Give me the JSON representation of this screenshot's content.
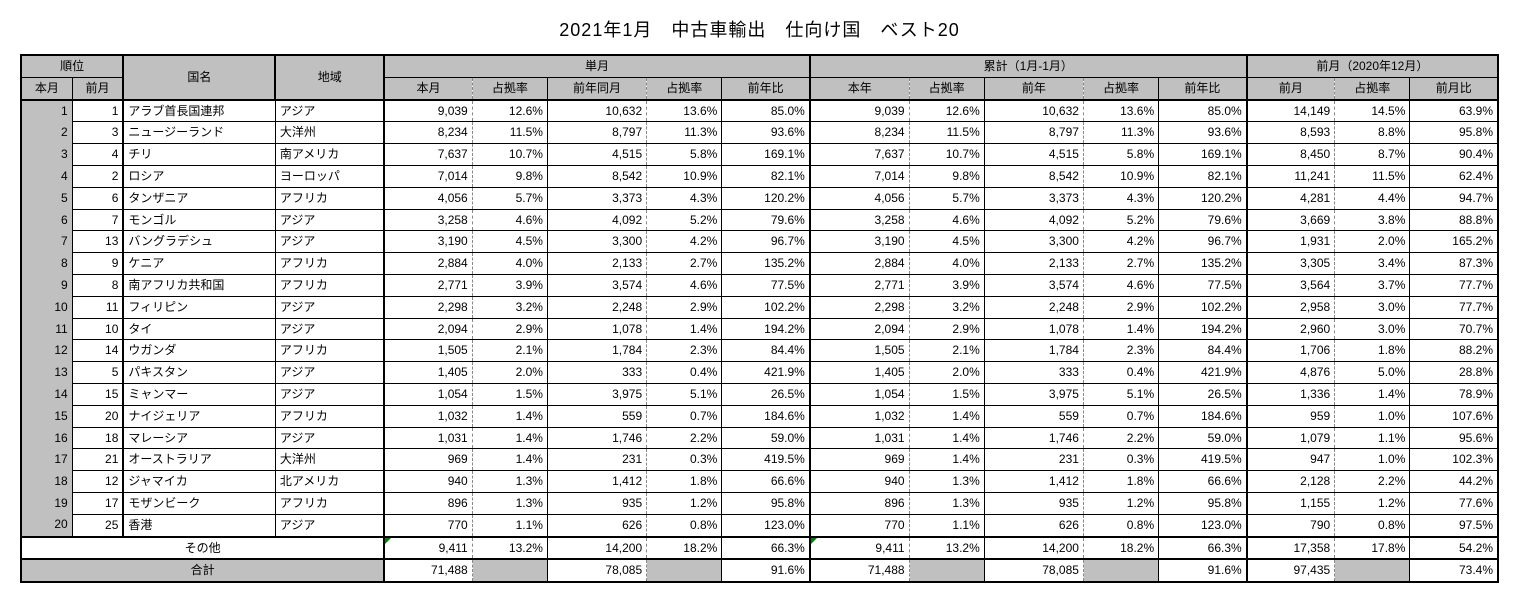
{
  "title": "2021年1月　中古車輸出　仕向け国　ベスト20",
  "header": {
    "rank": "順位",
    "rank_this": "本月",
    "rank_prev": "前月",
    "country": "国名",
    "region": "地域",
    "single_month": "単月",
    "cumulative": "累計（1月-1月）",
    "prev_month": "前月（2020年12月）",
    "sub": {
      "this_month": "本月",
      "share": "占拠率",
      "last_year_month": "前年同月",
      "yoy": "前年比",
      "this_year": "本年",
      "last_year": "前年",
      "prev_m": "前月",
      "mom": "前月比"
    }
  },
  "rows": [
    {
      "r": 1,
      "pr": 1,
      "country": "アラブ首長国連邦",
      "region": "アジア",
      "m": "9,039",
      "ms": "12.6%",
      "ly": "10,632",
      "lys": "13.6%",
      "yoy": "85.0%",
      "cy": "9,039",
      "cys": "12.6%",
      "cly": "10,632",
      "clys": "13.6%",
      "cyy": "85.0%",
      "pm": "14,149",
      "pms": "14.5%",
      "mom": "63.9%"
    },
    {
      "r": 2,
      "pr": 3,
      "country": "ニュージーランド",
      "region": "大洋州",
      "m": "8,234",
      "ms": "11.5%",
      "ly": "8,797",
      "lys": "11.3%",
      "yoy": "93.6%",
      "cy": "8,234",
      "cys": "11.5%",
      "cly": "8,797",
      "clys": "11.3%",
      "cyy": "93.6%",
      "pm": "8,593",
      "pms": "8.8%",
      "mom": "95.8%"
    },
    {
      "r": 3,
      "pr": 4,
      "country": "チリ",
      "region": "南アメリカ",
      "m": "7,637",
      "ms": "10.7%",
      "ly": "4,515",
      "lys": "5.8%",
      "yoy": "169.1%",
      "cy": "7,637",
      "cys": "10.7%",
      "cly": "4,515",
      "clys": "5.8%",
      "cyy": "169.1%",
      "pm": "8,450",
      "pms": "8.7%",
      "mom": "90.4%"
    },
    {
      "r": 4,
      "pr": 2,
      "country": "ロシア",
      "region": "ヨーロッパ",
      "m": "7,014",
      "ms": "9.8%",
      "ly": "8,542",
      "lys": "10.9%",
      "yoy": "82.1%",
      "cy": "7,014",
      "cys": "9.8%",
      "cly": "8,542",
      "clys": "10.9%",
      "cyy": "82.1%",
      "pm": "11,241",
      "pms": "11.5%",
      "mom": "62.4%"
    },
    {
      "r": 5,
      "pr": 6,
      "country": "タンザニア",
      "region": "アフリカ",
      "m": "4,056",
      "ms": "5.7%",
      "ly": "3,373",
      "lys": "4.3%",
      "yoy": "120.2%",
      "cy": "4,056",
      "cys": "5.7%",
      "cly": "3,373",
      "clys": "4.3%",
      "cyy": "120.2%",
      "pm": "4,281",
      "pms": "4.4%",
      "mom": "94.7%"
    },
    {
      "r": 6,
      "pr": 7,
      "country": "モンゴル",
      "region": "アジア",
      "m": "3,258",
      "ms": "4.6%",
      "ly": "4,092",
      "lys": "5.2%",
      "yoy": "79.6%",
      "cy": "3,258",
      "cys": "4.6%",
      "cly": "4,092",
      "clys": "5.2%",
      "cyy": "79.6%",
      "pm": "3,669",
      "pms": "3.8%",
      "mom": "88.8%"
    },
    {
      "r": 7,
      "pr": 13,
      "country": "バングラデシュ",
      "region": "アジア",
      "m": "3,190",
      "ms": "4.5%",
      "ly": "3,300",
      "lys": "4.2%",
      "yoy": "96.7%",
      "cy": "3,190",
      "cys": "4.5%",
      "cly": "3,300",
      "clys": "4.2%",
      "cyy": "96.7%",
      "pm": "1,931",
      "pms": "2.0%",
      "mom": "165.2%"
    },
    {
      "r": 8,
      "pr": 9,
      "country": "ケニア",
      "region": "アフリカ",
      "m": "2,884",
      "ms": "4.0%",
      "ly": "2,133",
      "lys": "2.7%",
      "yoy": "135.2%",
      "cy": "2,884",
      "cys": "4.0%",
      "cly": "2,133",
      "clys": "2.7%",
      "cyy": "135.2%",
      "pm": "3,305",
      "pms": "3.4%",
      "mom": "87.3%"
    },
    {
      "r": 9,
      "pr": 8,
      "country": "南アフリカ共和国",
      "region": "アフリカ",
      "m": "2,771",
      "ms": "3.9%",
      "ly": "3,574",
      "lys": "4.6%",
      "yoy": "77.5%",
      "cy": "2,771",
      "cys": "3.9%",
      "cly": "3,574",
      "clys": "4.6%",
      "cyy": "77.5%",
      "pm": "3,564",
      "pms": "3.7%",
      "mom": "77.7%"
    },
    {
      "r": 10,
      "pr": 11,
      "country": "フィリピン",
      "region": "アジア",
      "m": "2,298",
      "ms": "3.2%",
      "ly": "2,248",
      "lys": "2.9%",
      "yoy": "102.2%",
      "cy": "2,298",
      "cys": "3.2%",
      "cly": "2,248",
      "clys": "2.9%",
      "cyy": "102.2%",
      "pm": "2,958",
      "pms": "3.0%",
      "mom": "77.7%"
    },
    {
      "r": 11,
      "pr": 10,
      "country": "タイ",
      "region": "アジア",
      "m": "2,094",
      "ms": "2.9%",
      "ly": "1,078",
      "lys": "1.4%",
      "yoy": "194.2%",
      "cy": "2,094",
      "cys": "2.9%",
      "cly": "1,078",
      "clys": "1.4%",
      "cyy": "194.2%",
      "pm": "2,960",
      "pms": "3.0%",
      "mom": "70.7%"
    },
    {
      "r": 12,
      "pr": 14,
      "country": "ウガンダ",
      "region": "アフリカ",
      "m": "1,505",
      "ms": "2.1%",
      "ly": "1,784",
      "lys": "2.3%",
      "yoy": "84.4%",
      "cy": "1,505",
      "cys": "2.1%",
      "cly": "1,784",
      "clys": "2.3%",
      "cyy": "84.4%",
      "pm": "1,706",
      "pms": "1.8%",
      "mom": "88.2%"
    },
    {
      "r": 13,
      "pr": 5,
      "country": "パキスタン",
      "region": "アジア",
      "m": "1,405",
      "ms": "2.0%",
      "ly": "333",
      "lys": "0.4%",
      "yoy": "421.9%",
      "cy": "1,405",
      "cys": "2.0%",
      "cly": "333",
      "clys": "0.4%",
      "cyy": "421.9%",
      "pm": "4,876",
      "pms": "5.0%",
      "mom": "28.8%"
    },
    {
      "r": 14,
      "pr": 15,
      "country": "ミャンマー",
      "region": "アジア",
      "m": "1,054",
      "ms": "1.5%",
      "ly": "3,975",
      "lys": "5.1%",
      "yoy": "26.5%",
      "cy": "1,054",
      "cys": "1.5%",
      "cly": "3,975",
      "clys": "5.1%",
      "cyy": "26.5%",
      "pm": "1,336",
      "pms": "1.4%",
      "mom": "78.9%"
    },
    {
      "r": 15,
      "pr": 20,
      "country": "ナイジェリア",
      "region": "アフリカ",
      "m": "1,032",
      "ms": "1.4%",
      "ly": "559",
      "lys": "0.7%",
      "yoy": "184.6%",
      "cy": "1,032",
      "cys": "1.4%",
      "cly": "559",
      "clys": "0.7%",
      "cyy": "184.6%",
      "pm": "959",
      "pms": "1.0%",
      "mom": "107.6%"
    },
    {
      "r": 16,
      "pr": 18,
      "country": "マレーシア",
      "region": "アジア",
      "m": "1,031",
      "ms": "1.4%",
      "ly": "1,746",
      "lys": "2.2%",
      "yoy": "59.0%",
      "cy": "1,031",
      "cys": "1.4%",
      "cly": "1,746",
      "clys": "2.2%",
      "cyy": "59.0%",
      "pm": "1,079",
      "pms": "1.1%",
      "mom": "95.6%"
    },
    {
      "r": 17,
      "pr": 21,
      "country": "オーストラリア",
      "region": "大洋州",
      "m": "969",
      "ms": "1.4%",
      "ly": "231",
      "lys": "0.3%",
      "yoy": "419.5%",
      "cy": "969",
      "cys": "1.4%",
      "cly": "231",
      "clys": "0.3%",
      "cyy": "419.5%",
      "pm": "947",
      "pms": "1.0%",
      "mom": "102.3%"
    },
    {
      "r": 18,
      "pr": 12,
      "country": "ジャマイカ",
      "region": "北アメリカ",
      "m": "940",
      "ms": "1.3%",
      "ly": "1,412",
      "lys": "1.8%",
      "yoy": "66.6%",
      "cy": "940",
      "cys": "1.3%",
      "cly": "1,412",
      "clys": "1.8%",
      "cyy": "66.6%",
      "pm": "2,128",
      "pms": "2.2%",
      "mom": "44.2%"
    },
    {
      "r": 19,
      "pr": 17,
      "country": "モザンビーク",
      "region": "アフリカ",
      "m": "896",
      "ms": "1.3%",
      "ly": "935",
      "lys": "1.2%",
      "yoy": "95.8%",
      "cy": "896",
      "cys": "1.3%",
      "cly": "935",
      "clys": "1.2%",
      "cyy": "95.8%",
      "pm": "1,155",
      "pms": "1.2%",
      "mom": "77.6%"
    },
    {
      "r": 20,
      "pr": 25,
      "country": "香港",
      "region": "アジア",
      "m": "770",
      "ms": "1.1%",
      "ly": "626",
      "lys": "0.8%",
      "yoy": "123.0%",
      "cy": "770",
      "cys": "1.1%",
      "cly": "626",
      "clys": "0.8%",
      "cyy": "123.0%",
      "pm": "790",
      "pms": "0.8%",
      "mom": "97.5%"
    }
  ],
  "other": {
    "label": "その他",
    "m": "9,411",
    "ms": "13.2%",
    "ly": "14,200",
    "lys": "18.2%",
    "yoy": "66.3%",
    "cy": "9,411",
    "cys": "13.2%",
    "cly": "14,200",
    "clys": "18.2%",
    "cyy": "66.3%",
    "pm": "17,358",
    "pms": "17.8%",
    "mom": "54.2%"
  },
  "total": {
    "label": "合計",
    "m": "71,488",
    "ly": "78,085",
    "yoy": "91.6%",
    "cy": "71,488",
    "cly": "78,085",
    "cyy": "91.6%",
    "pm": "97,435",
    "mom": "73.4%"
  },
  "colors": {
    "header_bg": "#c0c0c0",
    "border": "#000000",
    "dash": "#888888",
    "marker": "#008000"
  }
}
